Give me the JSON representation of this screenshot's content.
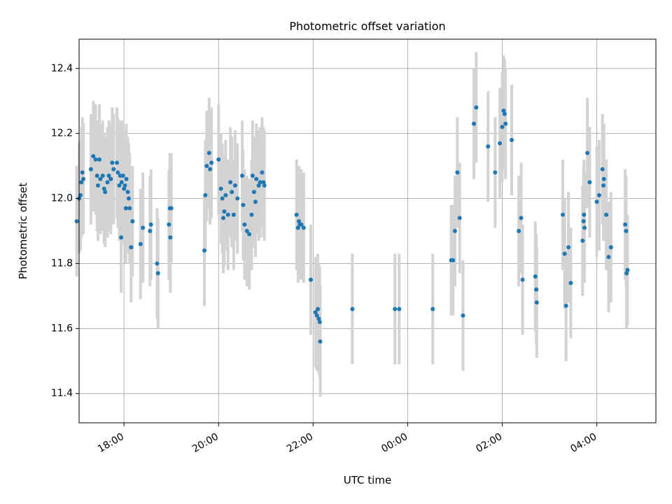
{
  "chart_data": {
    "type": "scatter",
    "title": "Photometric offset variation",
    "xlabel": "UTC time",
    "ylabel": "Photometric offset",
    "x_unit": "hours since 00:00 (negative = previous day)",
    "xlim": [
      -6.95,
      5.25
    ],
    "ylim": [
      11.31,
      12.49
    ],
    "x_ticks": [
      {
        "value": -6,
        "label": "18:00"
      },
      {
        "value": -4,
        "label": "20:00"
      },
      {
        "value": -2,
        "label": "22:00"
      },
      {
        "value": 0,
        "label": "00:00"
      },
      {
        "value": 2,
        "label": "02:00"
      },
      {
        "value": 4,
        "label": "04:00"
      }
    ],
    "y_ticks": [
      {
        "value": 11.4,
        "label": "11.4"
      },
      {
        "value": 11.6,
        "label": "11.6"
      },
      {
        "value": 11.8,
        "label": "11.8"
      },
      {
        "value": 12.0,
        "label": "12.0"
      },
      {
        "value": 12.2,
        "label": "12.2"
      },
      {
        "value": 12.4,
        "label": "12.4"
      }
    ],
    "grid": true,
    "point_color": "#1f77b4",
    "errorbar_color": "#d3d3d3",
    "error_halfwidth": 0.17,
    "points": [
      [
        -7.0,
        11.93
      ],
      [
        -6.95,
        12.0
      ],
      [
        -6.92,
        12.01
      ],
      [
        -6.9,
        12.05
      ],
      [
        -6.88,
        12.08
      ],
      [
        -6.86,
        12.06
      ],
      [
        -6.7,
        12.09
      ],
      [
        -6.65,
        12.13
      ],
      [
        -6.6,
        12.12
      ],
      [
        -6.57,
        12.07
      ],
      [
        -6.55,
        12.04
      ],
      [
        -6.52,
        12.12
      ],
      [
        -6.5,
        12.06
      ],
      [
        -6.45,
        12.07
      ],
      [
        -6.42,
        12.03
      ],
      [
        -6.4,
        12.02
      ],
      [
        -6.35,
        12.05
      ],
      [
        -6.32,
        12.07
      ],
      [
        -6.28,
        12.06
      ],
      [
        -6.25,
        12.11
      ],
      [
        -6.22,
        12.09
      ],
      [
        -6.15,
        12.11
      ],
      [
        -6.13,
        12.08
      ],
      [
        -6.1,
        12.04
      ],
      [
        -6.08,
        12.07
      ],
      [
        -6.06,
        11.88
      ],
      [
        -6.05,
        12.05
      ],
      [
        -6.02,
        12.07
      ],
      [
        -6.0,
        12.03
      ],
      [
        -5.98,
        12.04
      ],
      [
        -5.96,
        11.97
      ],
      [
        -5.95,
        12.06
      ],
      [
        -5.92,
        12.02
      ],
      [
        -5.9,
        12.0
      ],
      [
        -5.88,
        11.97
      ],
      [
        -5.85,
        11.85
      ],
      [
        -5.82,
        11.93
      ],
      [
        -5.65,
        11.86
      ],
      [
        -5.6,
        11.91
      ],
      [
        -5.45,
        11.9
      ],
      [
        -5.43,
        11.92
      ],
      [
        -5.3,
        11.8
      ],
      [
        -5.28,
        11.77
      ],
      [
        -5.05,
        11.92
      ],
      [
        -5.03,
        11.97
      ],
      [
        -5.02,
        11.88
      ],
      [
        -5.0,
        11.97
      ],
      [
        -4.3,
        11.84
      ],
      [
        -4.28,
        12.01
      ],
      [
        -4.25,
        12.1
      ],
      [
        -4.2,
        12.14
      ],
      [
        -4.18,
        12.09
      ],
      [
        -4.15,
        12.11
      ],
      [
        -4.0,
        12.12
      ],
      [
        -3.95,
        12.03
      ],
      [
        -3.92,
        12.0
      ],
      [
        -3.9,
        11.94
      ],
      [
        -3.88,
        11.96
      ],
      [
        -3.85,
        12.01
      ],
      [
        -3.8,
        11.95
      ],
      [
        -3.75,
        12.05
      ],
      [
        -3.72,
        12.02
      ],
      [
        -3.68,
        11.95
      ],
      [
        -3.65,
        12.04
      ],
      [
        -3.6,
        12.0
      ],
      [
        -3.5,
        12.07
      ],
      [
        -3.48,
        11.98
      ],
      [
        -3.45,
        11.92
      ],
      [
        -3.4,
        11.9
      ],
      [
        -3.35,
        11.89
      ],
      [
        -3.3,
        11.95
      ],
      [
        -3.28,
        12.07
      ],
      [
        -3.25,
        12.02
      ],
      [
        -3.22,
        11.99
      ],
      [
        -3.2,
        12.06
      ],
      [
        -3.15,
        12.04
      ],
      [
        -3.12,
        12.05
      ],
      [
        -3.08,
        12.08
      ],
      [
        -3.05,
        12.05
      ],
      [
        -3.03,
        12.04
      ],
      [
        -2.35,
        11.95
      ],
      [
        -2.32,
        11.91
      ],
      [
        -2.3,
        11.93
      ],
      [
        -2.28,
        11.92
      ],
      [
        -2.25,
        11.92
      ],
      [
        -2.2,
        11.91
      ],
      [
        -2.05,
        11.75
      ],
      [
        -1.95,
        11.65
      ],
      [
        -1.92,
        11.64
      ],
      [
        -1.9,
        11.66
      ],
      [
        -1.88,
        11.63
      ],
      [
        -1.86,
        11.62
      ],
      [
        -1.85,
        11.56
      ],
      [
        -1.17,
        11.66
      ],
      [
        -0.27,
        11.66
      ],
      [
        -0.18,
        11.66
      ],
      [
        0.53,
        11.66
      ],
      [
        0.92,
        11.81
      ],
      [
        0.96,
        11.81
      ],
      [
        1.0,
        11.9
      ],
      [
        1.05,
        12.08
      ],
      [
        1.1,
        11.94
      ],
      [
        1.17,
        11.64
      ],
      [
        1.4,
        12.23
      ],
      [
        1.45,
        12.28
      ],
      [
        1.7,
        12.16
      ],
      [
        1.85,
        12.08
      ],
      [
        1.95,
        12.17
      ],
      [
        2.0,
        12.22
      ],
      [
        2.03,
        12.27
      ],
      [
        2.05,
        12.26
      ],
      [
        2.07,
        12.23
      ],
      [
        2.2,
        12.18
      ],
      [
        2.35,
        11.9
      ],
      [
        2.4,
        11.94
      ],
      [
        2.43,
        11.75
      ],
      [
        2.7,
        11.76
      ],
      [
        2.72,
        11.72
      ],
      [
        2.73,
        11.68
      ],
      [
        3.28,
        11.95
      ],
      [
        3.32,
        11.83
      ],
      [
        3.35,
        11.67
      ],
      [
        3.4,
        11.85
      ],
      [
        3.45,
        11.74
      ],
      [
        3.7,
        11.87
      ],
      [
        3.72,
        11.93
      ],
      [
        3.73,
        11.95
      ],
      [
        3.74,
        11.91
      ],
      [
        3.8,
        12.14
      ],
      [
        3.85,
        12.05
      ],
      [
        4.0,
        11.99
      ],
      [
        4.05,
        12.01
      ],
      [
        4.12,
        12.09
      ],
      [
        4.14,
        12.04
      ],
      [
        4.15,
        12.06
      ],
      [
        4.2,
        11.95
      ],
      [
        4.25,
        11.82
      ],
      [
        4.3,
        11.85
      ],
      [
        4.6,
        11.92
      ],
      [
        4.62,
        11.9
      ],
      [
        4.63,
        11.77
      ],
      [
        4.65,
        11.78
      ]
    ]
  }
}
